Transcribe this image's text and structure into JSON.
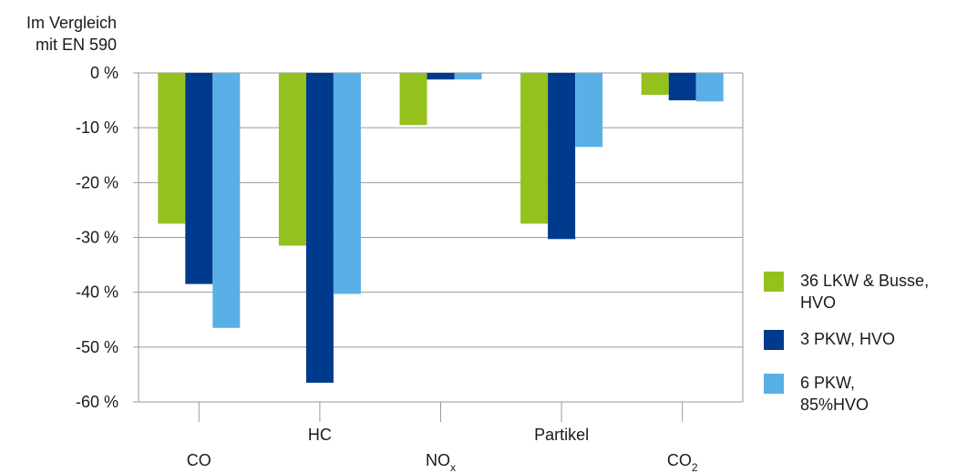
{
  "chart_data": {
    "type": "bar",
    "title": "",
    "ylabel_lines": [
      "Im Vergleich",
      "mit EN 590"
    ],
    "xlabel": "",
    "categories": [
      "CO",
      "HC",
      "NOx",
      "Partikel",
      "CO2"
    ],
    "category_labels": [
      {
        "main": "CO",
        "sub": ""
      },
      {
        "main": "HC",
        "sub": ""
      },
      {
        "main": "NO",
        "sub": "x"
      },
      {
        "main": "Partikel",
        "sub": ""
      },
      {
        "main": "CO",
        "sub": "2"
      }
    ],
    "ylim": [
      -60,
      0
    ],
    "yticks": [
      0,
      -10,
      -20,
      -30,
      -40,
      -50,
      -60
    ],
    "ytick_labels": [
      "0 %",
      "-10 %",
      "-20 %",
      "-30 %",
      "-40 %",
      "-50 %",
      "-60 %"
    ],
    "grid": true,
    "legend_position": "right",
    "series": [
      {
        "name": "36 LKW & Busse, HVO",
        "name_lines": [
          "36 LKW & Busse,",
          "HVO"
        ],
        "color": "#95c11f",
        "values": [
          -27.5,
          -31.5,
          -9.5,
          -27.5,
          -4
        ]
      },
      {
        "name": "3 PKW, HVO",
        "name_lines": [
          "3 PKW, HVO"
        ],
        "color": "#003a8c",
        "values": [
          -38.5,
          -56.5,
          -1.2,
          -30.3,
          -5
        ]
      },
      {
        "name": "6 PKW, 85%HVO",
        "name_lines": [
          "6 PKW,",
          "85%HVO"
        ],
        "color": "#5aafe6",
        "values": [
          -46.5,
          -40.3,
          -1.2,
          -13.5,
          -5.2
        ]
      }
    ]
  }
}
